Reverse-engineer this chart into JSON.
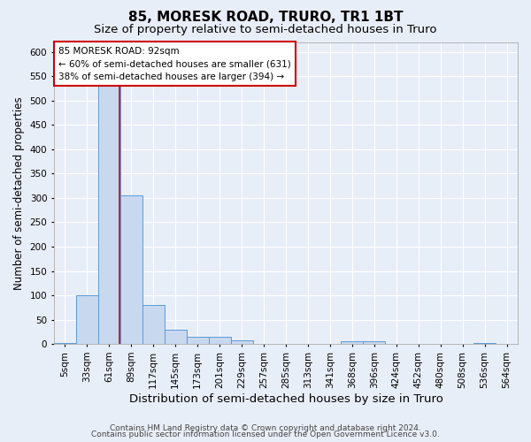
{
  "title": "85, MORESK ROAD, TRURO, TR1 1BT",
  "subtitle": "Size of property relative to semi-detached houses in Truro",
  "xlabel": "Distribution of semi-detached houses by size in Truro",
  "ylabel": "Number of semi-detached properties",
  "footnote1": "Contains HM Land Registry data © Crown copyright and database right 2024.",
  "footnote2": "Contains public sector information licensed under the Open Government Licence v3.0.",
  "categories": [
    "5sqm",
    "33sqm",
    "61sqm",
    "89sqm",
    "117sqm",
    "145sqm",
    "173sqm",
    "201sqm",
    "229sqm",
    "257sqm",
    "285sqm",
    "313sqm",
    "341sqm",
    "368sqm",
    "396sqm",
    "424sqm",
    "452sqm",
    "480sqm",
    "508sqm",
    "536sqm",
    "564sqm"
  ],
  "values": [
    3,
    100,
    550,
    305,
    80,
    30,
    15,
    15,
    7,
    0,
    0,
    0,
    0,
    5,
    5,
    0,
    0,
    0,
    0,
    3,
    0
  ],
  "bar_color": "#c8d8ef",
  "bar_edge_color": "#5b9bd5",
  "annotation_label": "85 MORESK ROAD: 92sqm",
  "annotation_line1": "← 60% of semi-detached houses are smaller (631)",
  "annotation_line2": "38% of semi-detached houses are larger (394) →",
  "annotation_box_color": "#ffffff",
  "annotation_box_edge": "#cc0000",
  "vline_color": "#cc0000",
  "vline_x": 2.45,
  "ylim": [
    0,
    620
  ],
  "yticks": [
    0,
    50,
    100,
    150,
    200,
    250,
    300,
    350,
    400,
    450,
    500,
    550,
    600
  ],
  "bg_color": "#e8eef8",
  "plot_bg_color": "#e8eef8",
  "grid_color": "#ffffff",
  "title_fontsize": 11,
  "subtitle_fontsize": 9.5,
  "xlabel_fontsize": 9.5,
  "ylabel_fontsize": 8.5,
  "tick_fontsize": 7.5,
  "annot_fontsize": 7.5,
  "footnote_fontsize": 6.5
}
